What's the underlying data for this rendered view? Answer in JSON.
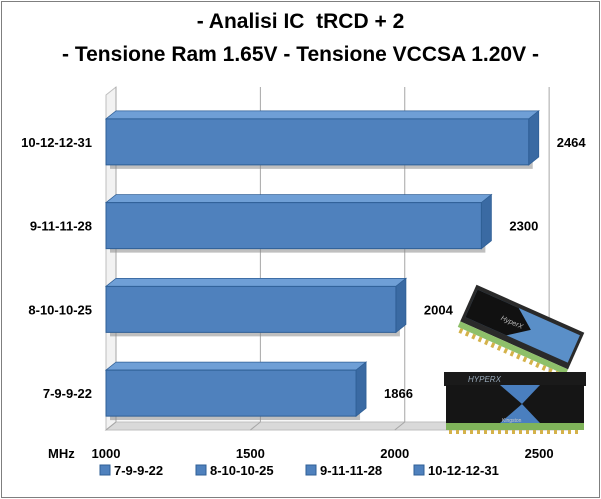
{
  "chart_data": {
    "type": "bar",
    "orientation": "horizontal",
    "title": "- Analisi IC  tRCD + 2",
    "subtitle": "- Tensione Ram 1.65V - Tensione VCCSA 1.20V -",
    "xlabel": "MHz",
    "ylabel": "",
    "xlim": [
      1000,
      2600
    ],
    "ticks": [
      "1000",
      "1500",
      "2000",
      "2500"
    ],
    "tick_values": [
      1000,
      1500,
      2000,
      2500
    ],
    "grid": true,
    "legend_position": "bottom",
    "categories": [
      "7-9-9-22",
      "8-10-10-25",
      "9-11-11-28",
      "10-12-12-31"
    ],
    "values": [
      1866,
      2004,
      2300,
      2464
    ],
    "data_labels": [
      "1866",
      "2004",
      "2300",
      "2464"
    ],
    "legend": [
      "7-9-9-22",
      "8-10-10-25",
      "9-11-11-28",
      "10-12-12-31"
    ],
    "colors": {
      "bar_fill": "#4f81bd",
      "bar_top": "#6f9fd6",
      "bar_shadow": "#8a8a8a",
      "grid": "#a6a6a6",
      "floor": "#d9d9d9"
    }
  },
  "decoration": {
    "image": "kingston-hyperx-memory-modules"
  }
}
